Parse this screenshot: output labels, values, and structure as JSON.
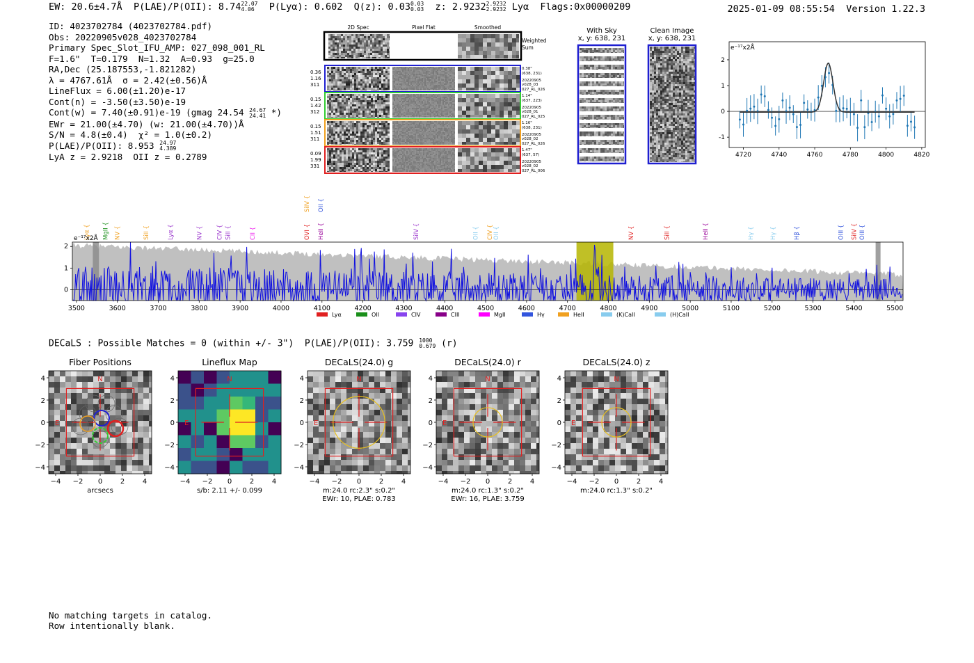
{
  "header": {
    "ew_label": "EW: 20.6±4.7Å",
    "plae_label": "P(LAE)/P(OII): 8.74",
    "plae_hi": "22.07",
    "plae_lo": "4.06",
    "plya_label": "P(Lyα): 0.602",
    "q_label": "Q(z): 0.03",
    "q_hi": "0.03",
    "q_lo": "0.03",
    "z_label": "z: 2.9232",
    "z_hi": "2.9232",
    "z_lo": "2.9232",
    "line_label": "Lyα",
    "flags_label": "Flags:0x00000209",
    "timestamp": "2025-01-09 08:55:54",
    "version": "Version 1.22.3"
  },
  "info": {
    "id": "ID: 4023702784 (4023702784.pdf)",
    "obs": "Obs: 20220905v028_4023702784",
    "primary": "Primary Spec_Slot_IFU_AMP: 027_098_001_RL",
    "params": "F=1.6\"  T=0.179  N=1.32  A=0.93  g=25.0",
    "radec": "RA,Dec (25.187553,-1.821282)",
    "lambda": "λ = 4767.61Å  σ = 2.42(±0.56)Å",
    "lineflux": "LineFlux = 6.00(±1.20)e-17",
    "contn": "Cont(n) = -3.50(±3.50)e-19",
    "contw": "Cont(w) = 7.40(±0.91)e-19 (gmag 24.54",
    "contw_hi": "24.67",
    "contw_lo": "24.41",
    "contw_end": " *)",
    "ewr": "EWr = 21.00(±4.70) (w: 21.00(±4.70))Å",
    "sn": "S/N = 4.8(±0.4)  χ² = 1.0(±0.2)",
    "plae": "P(LAE)/P(OII): 8.953",
    "plae_hi": "24.97",
    "plae_lo": "4.389",
    "lyaz": "LyA z = 2.9218  OII z = 0.2789"
  },
  "cutouts": {
    "col_2d": "2D Spec",
    "col_flat": "Pixel Flat",
    "col_smooth": "Smoothed",
    "weighted": "Weighted",
    "sum": "Sum",
    "rows": [
      {
        "left": [
          "0.36",
          "1.16",
          "311"
        ],
        "right": [
          "0.38\"",
          "(638, 231)",
          "20220905",
          "v028_03",
          "027_RL_026"
        ],
        "color": "#1f1fd0"
      },
      {
        "left": [
          "0.15",
          "1.42",
          "312"
        ],
        "right": [
          "1.14\"",
          "(637, 223)",
          "20220905",
          "v028_01",
          "027_RL_025"
        ],
        "color": "#33cc33"
      },
      {
        "left": [
          "0.15",
          "1.51",
          "311"
        ],
        "right": [
          "1.16\"",
          "(638, 231)",
          "20220905",
          "v028_02",
          "027_RL_026"
        ],
        "color": "#f0a020"
      },
      {
        "left": [
          "0.09",
          "1.99",
          "331"
        ],
        "right": [
          "1.47\"",
          "(637, 57)",
          "20220905",
          "v028_02",
          "027_RL_006"
        ],
        "color": "#e02020"
      }
    ],
    "with_sky": "With Sky",
    "with_sky_xy": "x, y: 638, 231",
    "clean_image": "Clean Image",
    "clean_image_xy": "x, y: 638, 231"
  },
  "zoom_plot": {
    "unit": "e⁻¹⁷x2Å",
    "xticks": [
      "4720",
      "4740",
      "4760",
      "4780",
      "4800",
      "4820"
    ],
    "yticks": [
      "2",
      "1",
      "0",
      "-1"
    ],
    "xlim": [
      4712,
      4822
    ],
    "ylim": [
      -1.4,
      2.7
    ]
  },
  "spectrum": {
    "unit": "e⁻¹⁷x2Å",
    "xticks": [
      "3500",
      "3600",
      "3700",
      "3800",
      "3900",
      "4000",
      "4100",
      "4200",
      "4300",
      "4400",
      "4500",
      "4600",
      "4700",
      "4800",
      "4900",
      "5000",
      "5100",
      "5200",
      "5300",
      "5400",
      "5500"
    ],
    "yticks": [
      "2",
      "1",
      "0"
    ],
    "xlim": [
      3490,
      5520
    ],
    "ylim": [
      -0.5,
      2.2
    ],
    "lines": [
      {
        "label": "Lyα",
        "x": 3525,
        "color": "#f0a020"
      },
      {
        "label": "MgII",
        "x": 3571,
        "color": "#1a8f1a"
      },
      {
        "label": "NV",
        "x": 3600,
        "color": "#f0a020"
      },
      {
        "label": "SiII",
        "x": 3670,
        "color": "#f0a020"
      },
      {
        "label": "Lyα",
        "x": 3730,
        "color": "#9933cc"
      },
      {
        "label": "NV",
        "x": 3800,
        "color": "#9933cc"
      },
      {
        "label": "CIV",
        "x": 3850,
        "color": "#9933cc"
      },
      {
        "label": "SiII",
        "x": 3870,
        "color": "#9933cc"
      },
      {
        "label": "CII",
        "x": 3930,
        "color": "#ee22ee"
      },
      {
        "label": "OVI",
        "x": 4063,
        "color": "#e02020"
      },
      {
        "label": "HeII",
        "x": 4097,
        "color": "#990099"
      },
      {
        "label": "SiIV",
        "x": 4330,
        "color": "#9933cc"
      },
      {
        "label": "OII",
        "x": 4475,
        "color": "#88ccee"
      },
      {
        "label": "CIV",
        "x": 4510,
        "color": "#f0a020"
      },
      {
        "label": "OII",
        "x": 4525,
        "color": "#88ccee"
      },
      {
        "label": "NV",
        "x": 4855,
        "color": "#e02020"
      },
      {
        "label": "SiII",
        "x": 4943,
        "color": "#e02020"
      },
      {
        "label": "HeII",
        "x": 5037,
        "color": "#990099"
      },
      {
        "label": "Hγ",
        "x": 5148,
        "color": "#88ccee"
      },
      {
        "label": "Hγ",
        "x": 5202,
        "color": "#88ccee"
      },
      {
        "label": "Hβ",
        "x": 5260,
        "color": "#3355dd"
      },
      {
        "label": "OIII",
        "x": 5368,
        "color": "#3355dd"
      },
      {
        "label": "SiIV",
        "x": 5400,
        "color": "#e02020"
      },
      {
        "label": "OIII",
        "x": 5420,
        "color": "#3355dd"
      }
    ],
    "upper_lines": [
      {
        "label": "SiIV",
        "x": 4063,
        "color": "#f0a020"
      },
      {
        "label": "OII",
        "x": 4097,
        "color": "#3355dd"
      }
    ],
    "legend": [
      {
        "label": "Lyα",
        "color": "#e02020"
      },
      {
        "label": "OII",
        "color": "#1a8f1a"
      },
      {
        "label": "CIV",
        "color": "#8844ee"
      },
      {
        "label": "CIII",
        "color": "#880088"
      },
      {
        "label": "MgII",
        "color": "#ff00ff"
      },
      {
        "label": "Hγ",
        "color": "#3355dd"
      },
      {
        "label": "HeII",
        "color": "#f0a020"
      },
      {
        "label": "(K)CaII",
        "color": "#88ccee"
      },
      {
        "label": "(H)CaII",
        "color": "#88ccee"
      }
    ]
  },
  "decals": {
    "summary": "DECaLS : Possible Matches = 0 (within +/- 3\")  P(LAE)/P(OII): 3.759",
    "summary_hi": "1000",
    "summary_lo": "0.679",
    "summary_end": " (r)",
    "panels": [
      {
        "title": "Fiber Positions",
        "caption1": "arcsecs",
        "caption2": ""
      },
      {
        "title": "Lineflux Map",
        "caption1": "s/b: 2.11 +/- 0.099",
        "caption2": ""
      },
      {
        "title": "DECaLS(24.0) g",
        "caption1": "m:24.0 rc:2.3\"  s:0.2\"",
        "caption2": "EWr: 10, PLAE: 0.783"
      },
      {
        "title": "DECaLS(24.0) r",
        "caption1": "m:24.0 rc:1.3\"  s:0.2\"",
        "caption2": "EWr: 16, PLAE: 3.759"
      },
      {
        "title": "DECaLS(24.0) z",
        "caption1": "m:24.0 rc:1.3\"  s:0.2\"",
        "caption2": ""
      }
    ],
    "ticks": [
      "4",
      "2",
      "0",
      "−2",
      "−4"
    ],
    "xticks": [
      "−4",
      "−2",
      "0",
      "2",
      "4"
    ],
    "north": "N",
    "east": "E"
  },
  "footer": {
    "line1": "No matching targets in catalog.",
    "line2": "Row intentionally blank."
  }
}
